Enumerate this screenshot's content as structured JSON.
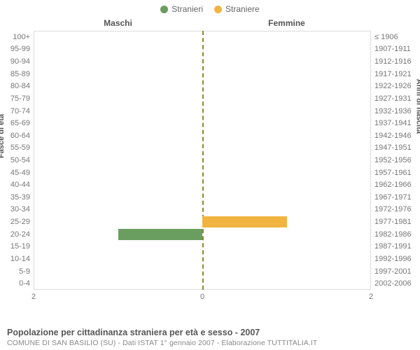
{
  "legend": {
    "male": {
      "label": "Stranieri",
      "color": "#6a9e61"
    },
    "female": {
      "label": "Straniere",
      "color": "#f2b441"
    }
  },
  "columns": {
    "left": "Maschi",
    "right": "Femmine"
  },
  "axis": {
    "left_title": "Fasce di età",
    "right_title": "Anni di nascita",
    "x_left_outer": "2",
    "x_center": "0",
    "x_right_outer": "2",
    "x_max": 2
  },
  "style": {
    "center_axis_color": "#8a8a33",
    "grid_color": "#dcdcdc",
    "label_color": "#777",
    "title_color": "#555",
    "bg": "#ffffff"
  },
  "rows": [
    {
      "age": "100+",
      "birth": "≤ 1906",
      "m": 0,
      "f": 0
    },
    {
      "age": "95-99",
      "birth": "1907-1911",
      "m": 0,
      "f": 0
    },
    {
      "age": "90-94",
      "birth": "1912-1916",
      "m": 0,
      "f": 0
    },
    {
      "age": "85-89",
      "birth": "1917-1921",
      "m": 0,
      "f": 0
    },
    {
      "age": "80-84",
      "birth": "1922-1926",
      "m": 0,
      "f": 0
    },
    {
      "age": "75-79",
      "birth": "1927-1931",
      "m": 0,
      "f": 0
    },
    {
      "age": "70-74",
      "birth": "1932-1936",
      "m": 0,
      "f": 0
    },
    {
      "age": "65-69",
      "birth": "1937-1941",
      "m": 0,
      "f": 0
    },
    {
      "age": "60-64",
      "birth": "1942-1946",
      "m": 0,
      "f": 0
    },
    {
      "age": "55-59",
      "birth": "1947-1951",
      "m": 0,
      "f": 0
    },
    {
      "age": "50-54",
      "birth": "1952-1956",
      "m": 0,
      "f": 0
    },
    {
      "age": "45-49",
      "birth": "1957-1961",
      "m": 0,
      "f": 0
    },
    {
      "age": "40-44",
      "birth": "1962-1966",
      "m": 0,
      "f": 0
    },
    {
      "age": "35-39",
      "birth": "1967-1971",
      "m": 0,
      "f": 0
    },
    {
      "age": "30-34",
      "birth": "1972-1976",
      "m": 0,
      "f": 0
    },
    {
      "age": "25-29",
      "birth": "1977-1981",
      "m": 0,
      "f": 1
    },
    {
      "age": "20-24",
      "birth": "1982-1986",
      "m": 1,
      "f": 0
    },
    {
      "age": "15-19",
      "birth": "1987-1991",
      "m": 0,
      "f": 0
    },
    {
      "age": "10-14",
      "birth": "1992-1996",
      "m": 0,
      "f": 0
    },
    {
      "age": "5-9",
      "birth": "1997-2001",
      "m": 0,
      "f": 0
    },
    {
      "age": "0-4",
      "birth": "2002-2006",
      "m": 0,
      "f": 0
    }
  ],
  "caption": "Popolazione per cittadinanza straniera per età e sesso - 2007",
  "subcaption": "COMUNE DI SAN BASILIO (SU) - Dati ISTAT 1° gennaio 2007 - Elaborazione TUTTITALIA.IT"
}
